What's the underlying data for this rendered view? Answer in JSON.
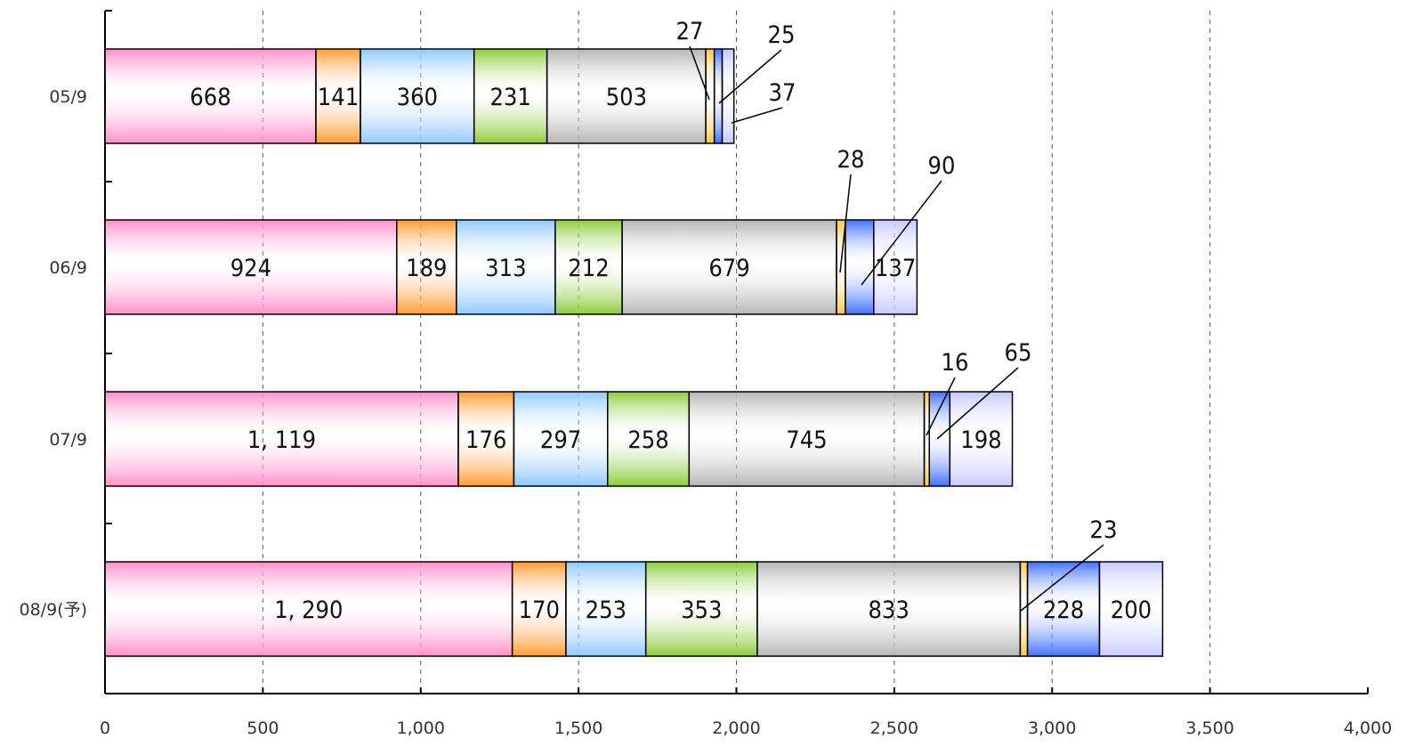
{
  "chart_data": {
    "type": "bar",
    "orientation": "horizontal",
    "stacked": true,
    "categories": [
      "05/9",
      "06/9",
      "07/9",
      "08/9(予)"
    ],
    "series": [
      {
        "values": [
          668,
          924,
          1119,
          1290
        ],
        "labels": [
          "668",
          "924",
          "1, 119",
          "1, 290"
        ],
        "color": "#ff8ec8"
      },
      {
        "values": [
          141,
          189,
          176,
          170
        ],
        "labels": [
          "141",
          "189",
          "176",
          "170"
        ],
        "color": "#ff9a2e"
      },
      {
        "values": [
          360,
          313,
          297,
          253
        ],
        "labels": [
          "360",
          "313",
          "297",
          "253"
        ],
        "color": "#8fc8ff"
      },
      {
        "values": [
          231,
          212,
          258,
          353
        ],
        "labels": [
          "231",
          "212",
          "258",
          "353"
        ],
        "color": "#8ccc3a"
      },
      {
        "values": [
          503,
          679,
          745,
          833
        ],
        "labels": [
          "503",
          "679",
          "745",
          "833"
        ],
        "color": "#b4b4b4"
      },
      {
        "values": [
          27,
          28,
          16,
          23
        ],
        "labels": [
          "27",
          "28",
          "16",
          "23"
        ],
        "color": "#f7c844"
      },
      {
        "values": [
          25,
          90,
          65,
          228
        ],
        "labels": [
          "25",
          "90",
          "65",
          "228"
        ],
        "color": "#3f6fff"
      },
      {
        "values": [
          37,
          137,
          198,
          200
        ],
        "labels": [
          "37",
          "137",
          "198",
          "200"
        ],
        "color": "#c8c8ff"
      }
    ],
    "xlim": [
      0,
      4000
    ],
    "xticks": [
      "0",
      "500",
      "1,000",
      "1,500",
      "2,000",
      "2,500",
      "3,000",
      "3,500",
      "4,000"
    ],
    "grid": "vertical-dashed",
    "legend": "none"
  }
}
